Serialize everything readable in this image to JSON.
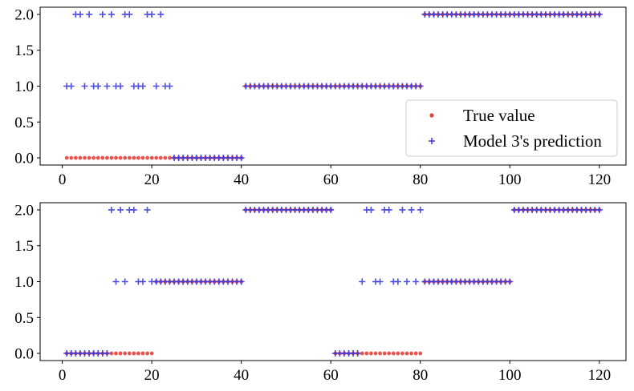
{
  "chart_data": [
    {
      "type": "scatter",
      "panel": "top",
      "xlim": [
        -4.95,
        125.95
      ],
      "ylim": [
        -0.1,
        2.1
      ],
      "xticks": [
        "0",
        "20",
        "40",
        "60",
        "80",
        "100",
        "120"
      ],
      "yticks": [
        "0.0",
        "0.5",
        "1.0",
        "1.5",
        "2.0"
      ],
      "legend": {
        "position": "lower-right",
        "entries": [
          "True value",
          "Model 3's prediction"
        ]
      },
      "series": [
        {
          "name": "True value",
          "marker": "dot",
          "color": "#e8413c",
          "segments": [
            {
              "x_from": 1,
              "x_to": 40,
              "y": 0
            },
            {
              "x_from": 41,
              "x_to": 80,
              "y": 1
            },
            {
              "x_from": 81,
              "x_to": 120,
              "y": 2
            }
          ]
        },
        {
          "name": "Model 3's prediction",
          "marker": "plus",
          "color": "#3b3bdc",
          "points_x": [
            1,
            2,
            3,
            4,
            5,
            6,
            7,
            8,
            9,
            10,
            11,
            12,
            13,
            14,
            15,
            16,
            17,
            18,
            19,
            20,
            21,
            22,
            23,
            24,
            25,
            26,
            27,
            28,
            29,
            30,
            31,
            32,
            33,
            34,
            35,
            36,
            37,
            38,
            39,
            40
          ],
          "points_y": [
            1,
            1,
            2,
            2,
            1,
            2,
            1,
            1,
            2,
            1,
            2,
            1,
            1,
            2,
            2,
            1,
            1,
            1,
            2,
            2,
            1,
            2,
            1,
            1,
            0,
            0,
            0,
            0,
            0,
            0,
            0,
            0,
            0,
            0,
            0,
            0,
            0,
            0,
            0,
            0
          ],
          "segments": [
            {
              "x_from": 41,
              "x_to": 80,
              "y": 1
            },
            {
              "x_from": 81,
              "x_to": 120,
              "y": 2
            }
          ]
        }
      ]
    },
    {
      "type": "scatter",
      "panel": "bottom",
      "xlim": [
        -4.95,
        125.95
      ],
      "ylim": [
        -0.1,
        2.1
      ],
      "xticks": [
        "0",
        "20",
        "40",
        "60",
        "80",
        "100",
        "120"
      ],
      "yticks": [
        "0.0",
        "0.5",
        "1.0",
        "1.5",
        "2.0"
      ],
      "series": [
        {
          "name": "True value",
          "marker": "dot",
          "color": "#e8413c",
          "segments": [
            {
              "x_from": 1,
              "x_to": 20,
              "y": 0
            },
            {
              "x_from": 21,
              "x_to": 40,
              "y": 1
            },
            {
              "x_from": 41,
              "x_to": 60,
              "y": 2
            },
            {
              "x_from": 61,
              "x_to": 80,
              "y": 0
            },
            {
              "x_from": 81,
              "x_to": 100,
              "y": 1
            },
            {
              "x_from": 101,
              "x_to": 120,
              "y": 2
            }
          ]
        },
        {
          "name": "Model 3's prediction",
          "marker": "plus",
          "color": "#3b3bdc",
          "points_x": [
            11,
            12,
            13,
            14,
            15,
            16,
            17,
            18,
            19,
            20,
            67,
            68,
            69,
            70,
            71,
            72,
            73,
            74,
            75,
            76,
            77,
            78,
            79,
            80
          ],
          "points_y": [
            2,
            1,
            2,
            1,
            2,
            2,
            1,
            1,
            2,
            1,
            1,
            2,
            2,
            1,
            1,
            2,
            2,
            1,
            1,
            2,
            1,
            2,
            1,
            2
          ],
          "segments": [
            {
              "x_from": 1,
              "x_to": 10,
              "y": 0
            },
            {
              "x_from": 21,
              "x_to": 40,
              "y": 1
            },
            {
              "x_from": 41,
              "x_to": 60,
              "y": 2
            },
            {
              "x_from": 61,
              "x_to": 66,
              "y": 0
            },
            {
              "x_from": 81,
              "x_to": 100,
              "y": 1
            },
            {
              "x_from": 101,
              "x_to": 120,
              "y": 2
            }
          ]
        }
      ]
    }
  ]
}
